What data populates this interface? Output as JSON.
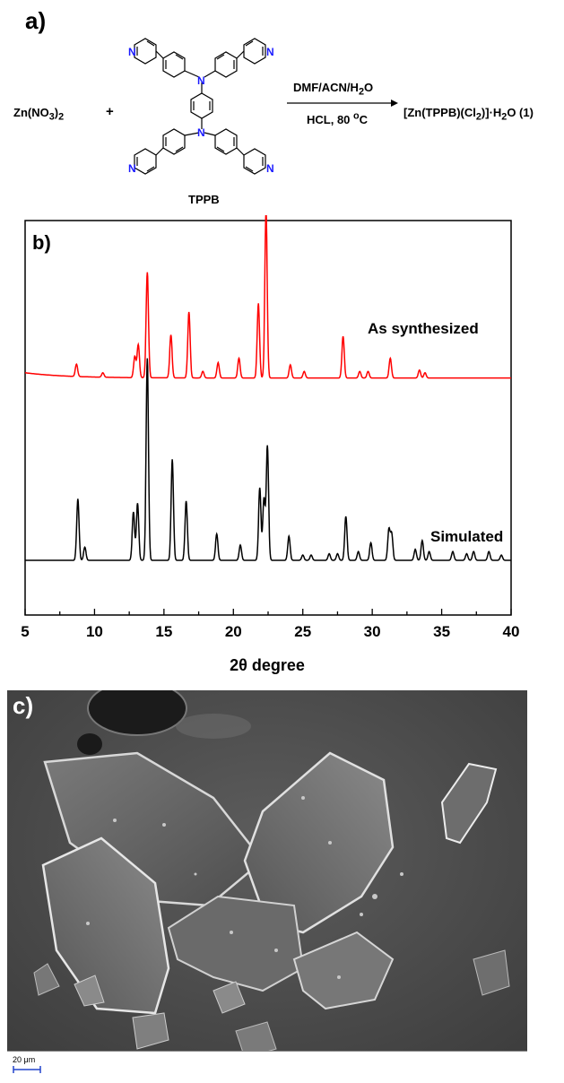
{
  "panel_a": {
    "label": "a)",
    "reactant_1": "Zn(NO3)2",
    "plus": "+",
    "ligand_name": "TPPB",
    "conditions_top": "DMF/ACN/H2O",
    "conditions_bottom": "HCL, 80 oC",
    "product": "[Zn(TPPB)(Cl2)]·H2O (1)",
    "atom_labels": {
      "nitrogen": "N"
    }
  },
  "panel_b": {
    "label": "b)"
  },
  "panel_c": {
    "label": "c)",
    "scale_bar_text": "20 μm"
  },
  "chart_data": {
    "type": "line",
    "xlabel": "2θ degree",
    "ylabel": "",
    "xlim": [
      5,
      40
    ],
    "x_ticks": [
      5,
      10,
      15,
      20,
      25,
      30,
      35,
      40
    ],
    "grid": false,
    "series": [
      {
        "name": "As synthesized",
        "color": "#ff0000",
        "baseline": 0.415,
        "peaks": [
          [
            8.7,
            0.028
          ],
          [
            10.6,
            0.01
          ],
          [
            12.9,
            0.048
          ],
          [
            13.15,
            0.075
          ],
          [
            13.8,
            0.24
          ],
          [
            15.5,
            0.098
          ],
          [
            16.8,
            0.15
          ],
          [
            17.8,
            0.015
          ],
          [
            18.9,
            0.035
          ],
          [
            20.4,
            0.045
          ],
          [
            21.8,
            0.17
          ],
          [
            22.35,
            0.38
          ],
          [
            24.1,
            0.03
          ],
          [
            25.1,
            0.015
          ],
          [
            27.9,
            0.095
          ],
          [
            29.1,
            0.015
          ],
          [
            29.7,
            0.015
          ],
          [
            31.3,
            0.045
          ],
          [
            33.4,
            0.018
          ],
          [
            33.8,
            0.012
          ]
        ]
      },
      {
        "name": "Simulated",
        "color": "#000000",
        "baseline": 0.0,
        "peaks": [
          [
            8.8,
            0.14
          ],
          [
            9.3,
            0.03
          ],
          [
            12.8,
            0.11
          ],
          [
            13.1,
            0.13
          ],
          [
            13.8,
            0.46
          ],
          [
            15.6,
            0.23
          ],
          [
            16.6,
            0.135
          ],
          [
            18.8,
            0.06
          ],
          [
            20.5,
            0.035
          ],
          [
            21.9,
            0.165
          ],
          [
            22.2,
            0.14
          ],
          [
            22.45,
            0.26
          ],
          [
            24.0,
            0.055
          ],
          [
            25.0,
            0.012
          ],
          [
            25.6,
            0.012
          ],
          [
            26.9,
            0.015
          ],
          [
            27.5,
            0.015
          ],
          [
            28.1,
            0.1
          ],
          [
            29.0,
            0.02
          ],
          [
            29.9,
            0.04
          ],
          [
            31.2,
            0.07
          ],
          [
            31.4,
            0.06
          ],
          [
            33.1,
            0.025
          ],
          [
            33.6,
            0.045
          ],
          [
            34.1,
            0.02
          ],
          [
            35.8,
            0.02
          ],
          [
            36.8,
            0.015
          ],
          [
            37.3,
            0.02
          ],
          [
            38.4,
            0.02
          ],
          [
            39.3,
            0.012
          ]
        ]
      }
    ],
    "annotations": [
      "As synthesized",
      "Simulated"
    ]
  }
}
